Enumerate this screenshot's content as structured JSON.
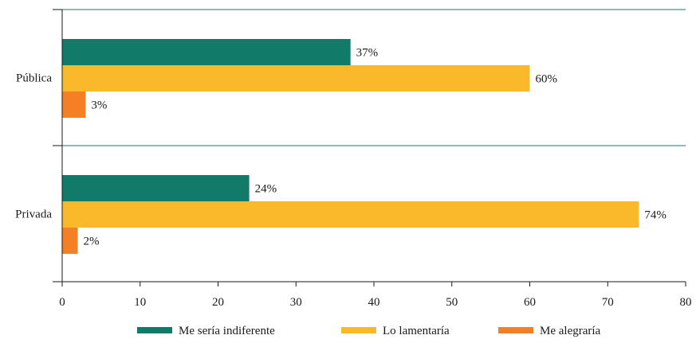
{
  "chart_data": {
    "type": "bar",
    "orientation": "horizontal",
    "title": "",
    "xlabel": "",
    "ylabel": "",
    "categories": [
      "Pública",
      "Privada"
    ],
    "series": [
      {
        "name": "Me sería indiferente",
        "values": [
          37,
          24
        ],
        "labels": [
          "37%",
          "24%"
        ],
        "color": "#117a69"
      },
      {
        "name": "Lo lamentaría",
        "values": [
          60,
          74
        ],
        "labels": [
          "60%",
          "74%"
        ],
        "color": "#f9b92b"
      },
      {
        "name": "Me alegraría",
        "values": [
          3,
          2
        ],
        "labels": [
          "3%",
          "2%"
        ],
        "color": "#f47f24"
      }
    ],
    "xlim": [
      0,
      80
    ],
    "xticks": [
      "0",
      "10",
      "20",
      "30",
      "40",
      "50",
      "60",
      "70",
      "80"
    ],
    "grid": true,
    "grid_color": "#117a69",
    "legend_position": "bottom"
  }
}
